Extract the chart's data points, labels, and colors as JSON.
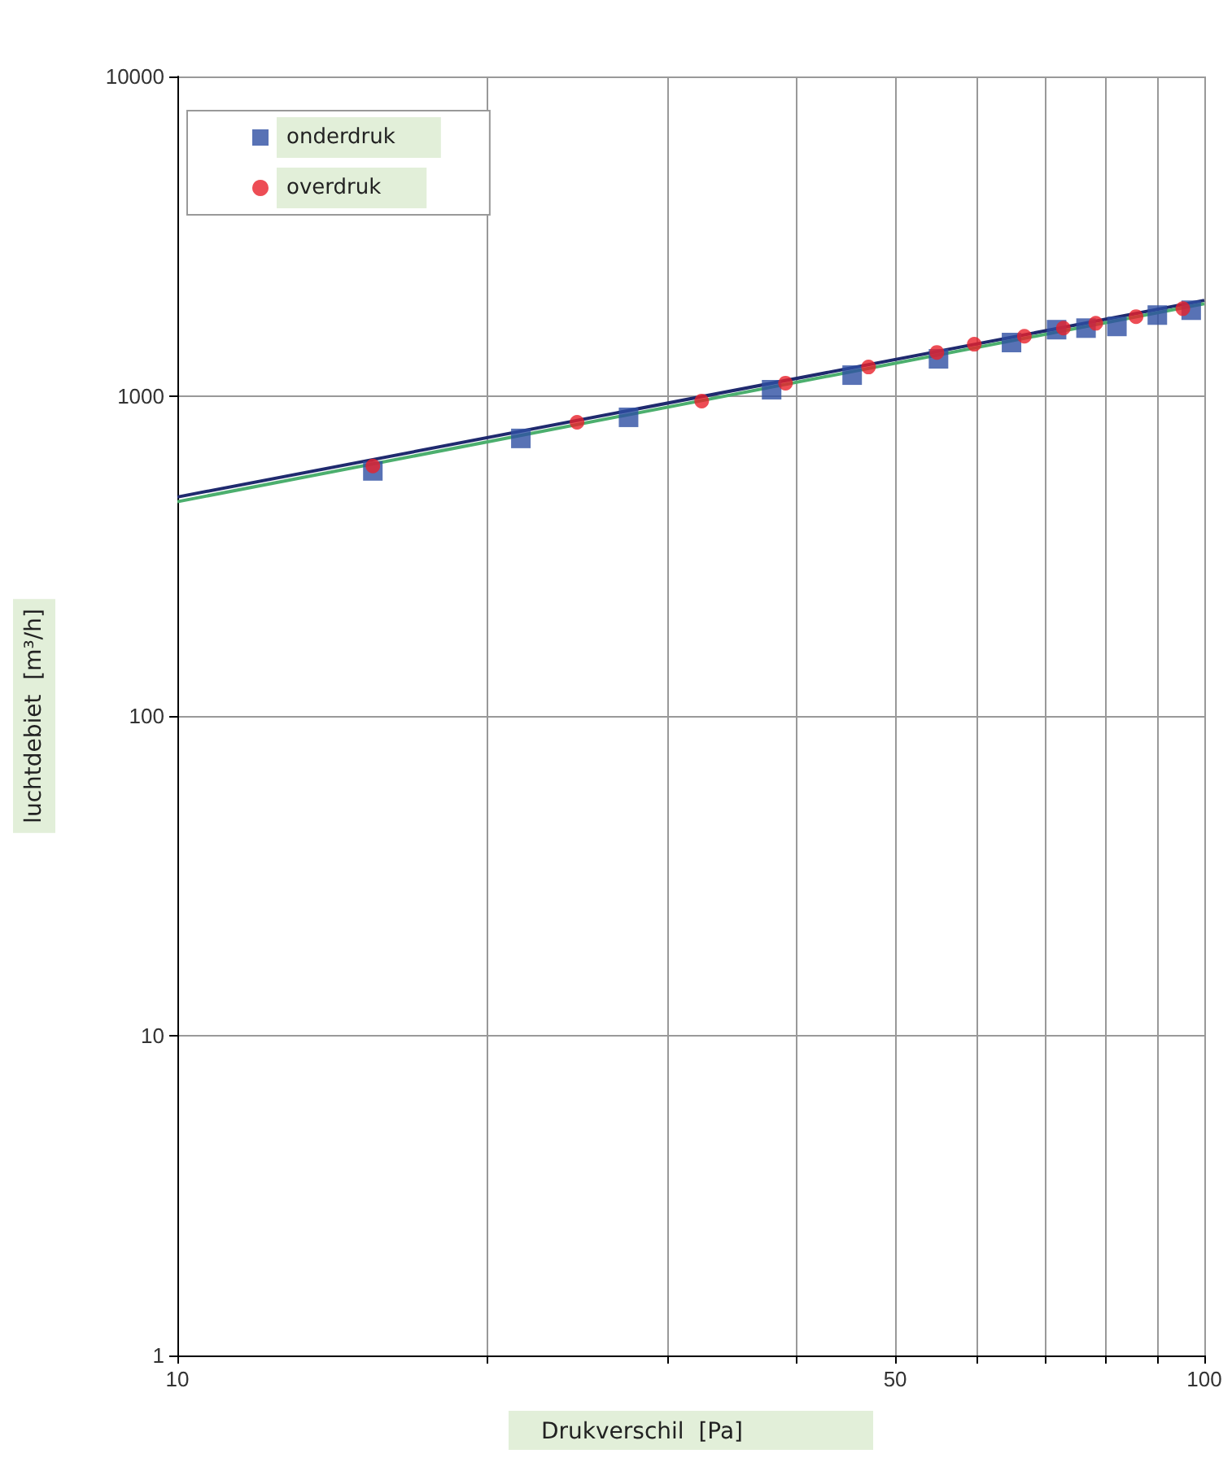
{
  "chart_data": {
    "type": "scatter",
    "xlabel": "Drukverschil  [Pa]",
    "ylabel": "luchtdebiet  [m³/h]",
    "log": "xy",
    "xlim": [
      10,
      100
    ],
    "ylim": [
      1,
      10000
    ],
    "xticks": [
      10,
      {
        "value": 20,
        "label": null
      },
      {
        "value": 30,
        "label": null
      },
      {
        "value": 40,
        "label": null
      },
      50,
      {
        "value": 60,
        "label": null
      },
      {
        "value": 70,
        "label": null
      },
      {
        "value": 80,
        "label": null
      },
      {
        "value": 90,
        "label": null
      },
      100
    ],
    "yticks": [
      1,
      10,
      100,
      1000,
      10000
    ],
    "grid": true,
    "legend": "top left",
    "series": [
      {
        "name": "onderdruk",
        "color": "#2e4fa3",
        "marker": "square",
        "x": [
          15.5,
          21.6,
          27.5,
          37.9,
          45.4,
          55.1,
          64.9,
          71.8,
          76.7,
          82.2,
          90,
          97.1
        ],
        "values": [
          584,
          738,
          859,
          1048,
          1164,
          1309,
          1472,
          1615,
          1633,
          1653,
          1794,
          1858
        ]
      },
      {
        "name": "overdruk",
        "color": "#e8202a",
        "marker": "circle",
        "x": [
          15.5,
          24.5,
          32.4,
          39.1,
          47.1,
          54.9,
          59.7,
          66.8,
          72.9,
          78.4,
          85.8,
          95.3
        ],
        "values": [
          605,
          829,
          966,
          1099,
          1234,
          1371,
          1454,
          1541,
          1633,
          1691,
          1774,
          1879
        ]
      },
      {
        "type": "line",
        "color": "#1f2a6e",
        "marker": "none",
        "x": [
          10,
          100
        ],
        "values": [
          484,
          1995
        ]
      },
      {
        "type": "line",
        "color": "#4caf6e",
        "marker": "none",
        "x": [
          10,
          100
        ],
        "values": [
          468,
          1948
        ]
      }
    ]
  }
}
